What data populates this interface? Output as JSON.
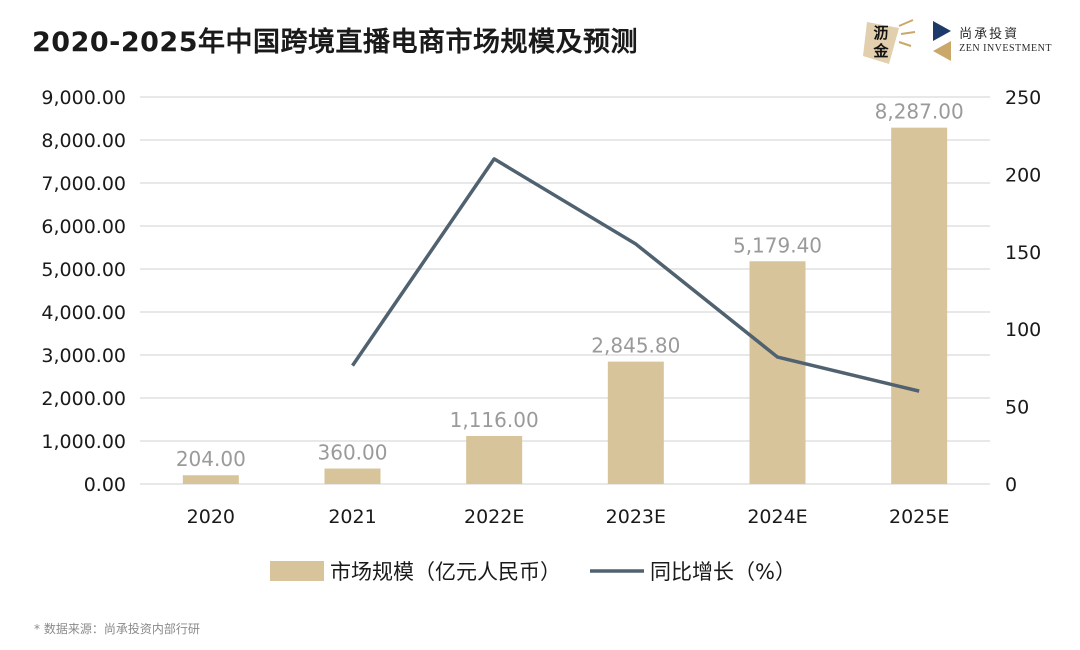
{
  "title": "2020-2025年中国跨境直播电商市场规模及预测",
  "logos": {
    "left": {
      "text": "沥金"
    },
    "right": {
      "name_cn": "尚承投資",
      "name_en": "ZEN INVESTMENT"
    }
  },
  "source_note": "* 数据来源：尚承投资内部行研",
  "colors": {
    "bar": "#d8c49a",
    "line": "#50616f",
    "grid": "#d9d9d9",
    "bar_label": "#9a9a9a",
    "axis_text": "#1a1a1a",
    "logo_gold": "#c9a86a",
    "logo_navy": "#1e3a6b"
  },
  "chart_data": {
    "type": "bar+line",
    "categories": [
      "2020",
      "2021",
      "2022E",
      "2023E",
      "2024E",
      "2025E"
    ],
    "series": [
      {
        "name": "市场规模（亿元人民币）",
        "type": "bar",
        "axis": "left",
        "values": [
          204.0,
          360.0,
          1116.0,
          2845.8,
          5179.4,
          8287.0
        ],
        "labels": [
          "204.00",
          "360.00",
          "1,116.00",
          "2,845.80",
          "5,179.40",
          "8,287.00"
        ]
      },
      {
        "name": "同比增长（%）",
        "type": "line",
        "axis": "right",
        "values": [
          null,
          76.5,
          210,
          155,
          82,
          60
        ]
      }
    ],
    "y_left": {
      "min": 0,
      "max": 9000,
      "ticks": [
        "0.00",
        "1,000.00",
        "2,000.00",
        "3,000.00",
        "4,000.00",
        "5,000.00",
        "6,000.00",
        "7,000.00",
        "8,000.00",
        "9,000.00"
      ]
    },
    "y_right": {
      "min": 0,
      "max": 250,
      "ticks": [
        "0",
        "50",
        "100",
        "150",
        "200",
        "250"
      ]
    },
    "grid": true,
    "legend_position": "bottom-center"
  }
}
